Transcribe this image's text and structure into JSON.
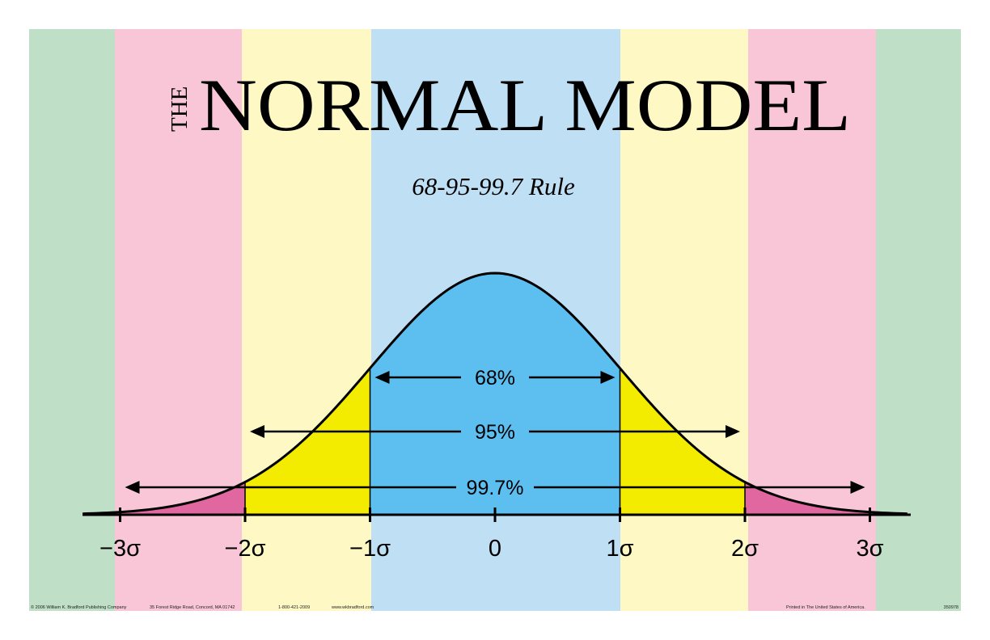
{
  "title": {
    "prefix": "THE",
    "main": "NORMAL MODEL"
  },
  "subtitle": "68-95-99.7 Rule",
  "colors": {
    "band_green": "#bfdfc6",
    "band_pink": "#f9c6d8",
    "band_yellow": "#fdf8c4",
    "band_blue": "#bfe0f4",
    "fill_center": "#5dbff0",
    "fill_mid": "#f3eb00",
    "fill_tail": "#e0679f",
    "ink": "#000000"
  },
  "chart_data": {
    "type": "area",
    "distribution": "standard normal",
    "xlim": [
      -3,
      3
    ],
    "tick_values": [
      -3,
      -2,
      -1,
      0,
      1,
      2,
      3
    ],
    "tick_labels": [
      "−3σ",
      "−2σ",
      "−1σ",
      "0",
      "1σ",
      "2σ",
      "3σ"
    ],
    "intervals": [
      {
        "label": "68%",
        "from": -1,
        "to": 1
      },
      {
        "label": "95%",
        "from": -2,
        "to": 2
      },
      {
        "label": "99.7%",
        "from": -3,
        "to": 3
      }
    ]
  },
  "footer": {
    "copyright": "© 2006   William K. Bradford Publishing Company",
    "address": "35 Forest Ridge Road, Concord, MA  01742",
    "phone": "1-800-421-2009",
    "website": "www.wkbradford.com",
    "printed": "Printed in The United States of America.",
    "code": "350978"
  }
}
